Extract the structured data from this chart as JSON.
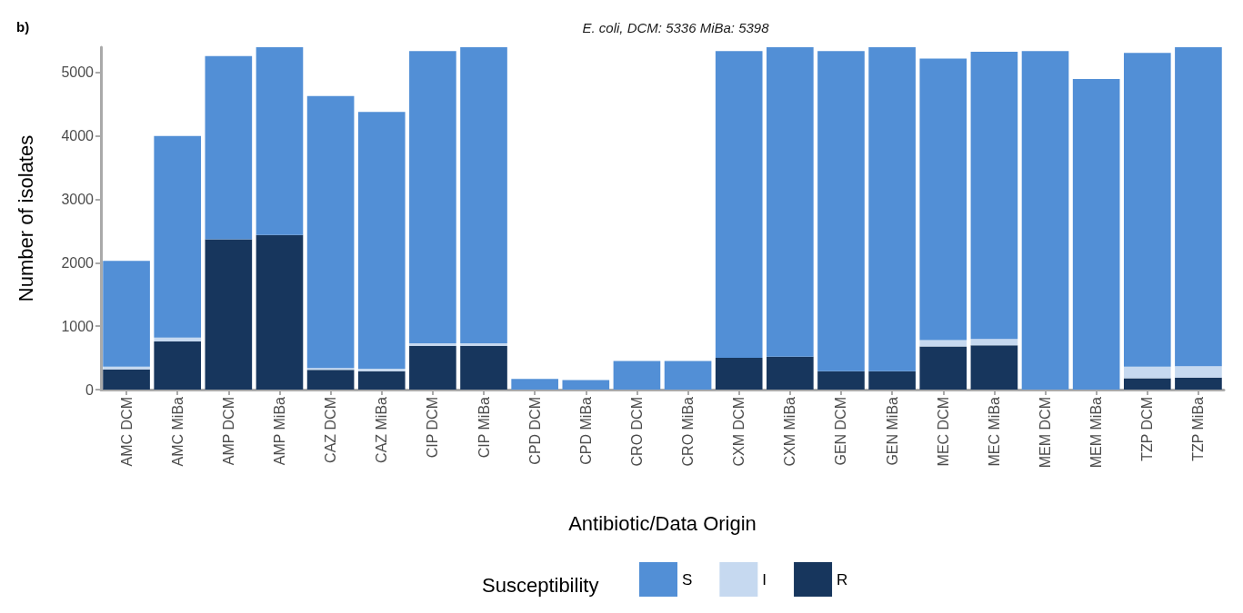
{
  "chart_data": {
    "type": "bar",
    "stacked": true,
    "title": "E. coli, DCM: 5336 MiBa: 5398",
    "annotations": [
      "b)"
    ],
    "xlabel": "Antibiotic/Data Origin",
    "ylabel": "Number of isolates",
    "legend_title": "Susceptibility",
    "legend": "bottom",
    "grid": false,
    "categories": [
      "AMC DCM",
      "AMC MiBa",
      "AMP DCM",
      "AMP MiBa",
      "CAZ DCM",
      "CAZ MiBa",
      "CIP DCM",
      "CIP MiBa",
      "CPD DCM",
      "CPD MiBa",
      "CRO DCM",
      "CRO MiBa",
      "CXM DCM",
      "CXM MiBa",
      "GEN DCM",
      "GEN MiBa",
      "MEC DCM",
      "MEC MiBa",
      "MEM DCM",
      "MEM MiBa",
      "TZP DCM",
      "TZP MiBa"
    ],
    "series": [
      {
        "name": "R",
        "color": "#17365d",
        "values": [
          320,
          760,
          2370,
          2440,
          310,
          290,
          690,
          690,
          0,
          0,
          0,
          0,
          500,
          520,
          290,
          290,
          680,
          700,
          0,
          0,
          180,
          190
        ]
      },
      {
        "name": "I",
        "color": "#c6d9f0",
        "values": [
          40,
          60,
          0,
          0,
          30,
          40,
          40,
          40,
          0,
          0,
          0,
          0,
          0,
          0,
          0,
          0,
          100,
          100,
          0,
          0,
          180,
          180
        ]
      },
      {
        "name": "S",
        "color": "#528fd6",
        "values": [
          1670,
          3180,
          2890,
          2960,
          4290,
          4050,
          4610,
          4670,
          170,
          150,
          450,
          450,
          4840,
          4880,
          5050,
          5110,
          4440,
          4530,
          5340,
          4900,
          4950,
          5030
        ]
      }
    ],
    "ylim": [
      0,
      5400
    ],
    "yticks": [
      0,
      1000,
      2000,
      3000,
      4000,
      5000
    ]
  }
}
